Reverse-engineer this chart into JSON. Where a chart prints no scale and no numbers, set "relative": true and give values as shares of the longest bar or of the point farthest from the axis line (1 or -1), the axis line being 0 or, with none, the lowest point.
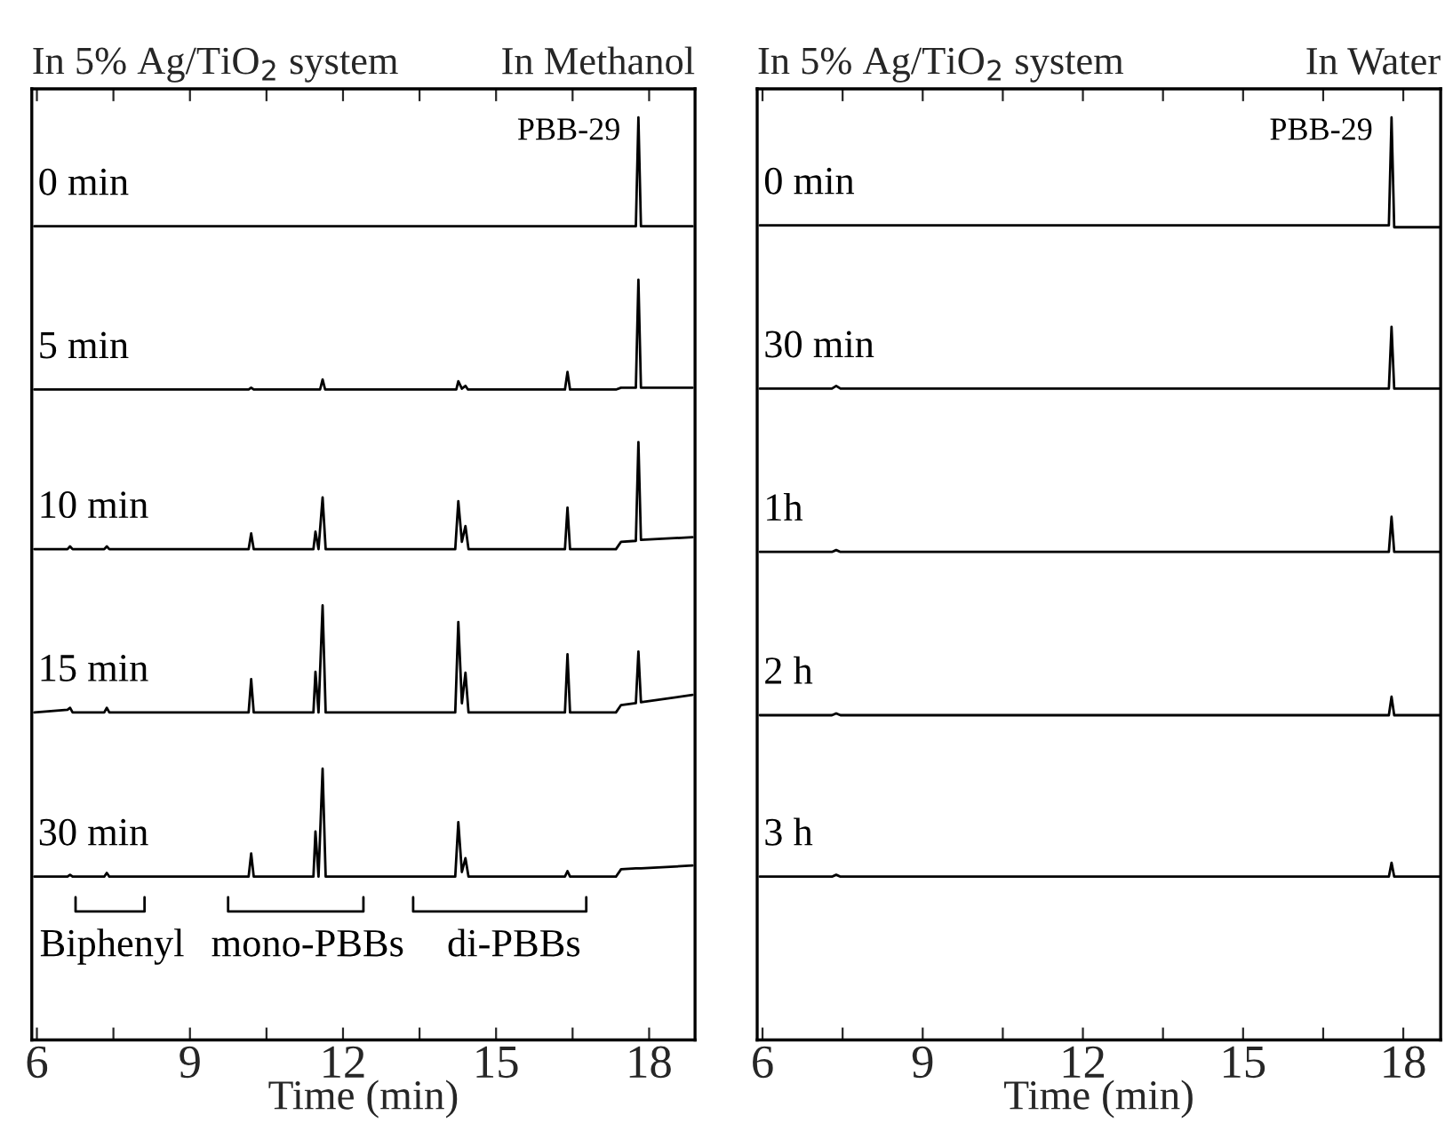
{
  "chart_data": [
    {
      "type": "line",
      "title": "In 5% Ag/TiO$_{2}$ system",
      "subtitle": "In Methanol",
      "xlabel": "Time (min)",
      "relative": true,
      "tick_labels": "x",
      "xlim": [
        5.9,
        18.9
      ],
      "xticks": [
        6,
        {
          "value": 7.5,
          "label": null
        },
        9,
        {
          "value": 10.5,
          "label": null
        },
        12,
        {
          "value": 13.5,
          "label": null
        },
        15,
        {
          "value": 16.5,
          "label": null
        },
        18
      ],
      "series": [
        {
          "name": "0 min",
          "color": "#000000",
          "x": [
            5.95,
            17.74,
            17.79,
            17.84,
            18.85
          ],
          "values": [
            0.882,
            0.882,
            1.0,
            0.882,
            0.882
          ]
        },
        {
          "name": "5 min",
          "color": "#000000",
          "x": [
            5.95,
            10.15,
            10.2,
            10.25,
            11.55,
            11.6,
            11.65,
            14.22,
            14.26,
            14.33,
            14.4,
            14.45,
            16.35,
            16.4,
            16.45,
            17.35,
            17.45,
            17.74,
            17.79,
            17.84,
            18.85
          ],
          "values": [
            0.705,
            0.705,
            0.707,
            0.705,
            0.705,
            0.716,
            0.705,
            0.705,
            0.714,
            0.706,
            0.709,
            0.705,
            0.705,
            0.724,
            0.705,
            0.705,
            0.707,
            0.707,
            0.824,
            0.707,
            0.707
          ]
        },
        {
          "name": "10 min",
          "color": "#000000",
          "x": [
            5.95,
            6.6,
            6.65,
            6.7,
            7.32,
            7.37,
            7.42,
            10.15,
            10.2,
            10.25,
            11.42,
            11.46,
            11.52,
            11.6,
            11.66,
            14.2,
            14.26,
            14.33,
            14.4,
            14.46,
            16.35,
            16.4,
            16.45,
            17.35,
            17.45,
            17.74,
            17.79,
            17.84,
            18.85
          ],
          "values": [
            0.532,
            0.532,
            0.535,
            0.532,
            0.532,
            0.535,
            0.532,
            0.532,
            0.549,
            0.532,
            0.532,
            0.551,
            0.532,
            0.588,
            0.532,
            0.532,
            0.584,
            0.54,
            0.557,
            0.532,
            0.532,
            0.577,
            0.532,
            0.532,
            0.54,
            0.541,
            0.648,
            0.542,
            0.545
          ]
        },
        {
          "name": "15 min",
          "color": "#000000",
          "x": [
            5.95,
            6.6,
            6.65,
            6.7,
            7.32,
            7.37,
            7.42,
            10.15,
            10.2,
            10.25,
            11.42,
            11.46,
            11.52,
            11.6,
            11.66,
            14.2,
            14.26,
            14.33,
            14.4,
            14.46,
            16.35,
            16.4,
            16.45,
            17.35,
            17.45,
            17.74,
            17.79,
            17.84,
            18.85
          ],
          "values": [
            0.355,
            0.358,
            0.36,
            0.355,
            0.355,
            0.36,
            0.355,
            0.355,
            0.391,
            0.355,
            0.355,
            0.399,
            0.355,
            0.471,
            0.355,
            0.355,
            0.453,
            0.365,
            0.398,
            0.355,
            0.355,
            0.418,
            0.355,
            0.355,
            0.363,
            0.365,
            0.421,
            0.366,
            0.374
          ]
        },
        {
          "name": "30 min",
          "color": "#000000",
          "x": [
            5.95,
            6.6,
            6.65,
            6.7,
            7.32,
            7.37,
            7.42,
            10.15,
            10.2,
            10.25,
            11.42,
            11.46,
            11.52,
            11.6,
            11.66,
            14.2,
            14.26,
            14.33,
            14.4,
            14.46,
            16.35,
            16.4,
            16.45,
            17.35,
            17.45,
            17.74,
            17.79,
            17.84,
            18.85
          ],
          "values": [
            0.177,
            0.177,
            0.179,
            0.177,
            0.177,
            0.181,
            0.177,
            0.177,
            0.202,
            0.177,
            0.177,
            0.226,
            0.177,
            0.294,
            0.177,
            0.177,
            0.236,
            0.182,
            0.197,
            0.177,
            0.177,
            0.183,
            0.177,
            0.177,
            0.185,
            0.186,
            0.186,
            0.186,
            0.189
          ]
        }
      ],
      "annotations": [
        {
          "text": "PBB-29",
          "x": 17.79,
          "y": 1.0
        },
        "Biphenyl",
        "mono-PBBs",
        "di-PBBs"
      ]
    },
    {
      "type": "line",
      "title": "In 5% Ag/TiO$_{2}$ system",
      "subtitle": "In Water",
      "xlabel": "Time (min)",
      "relative": true,
      "tick_labels": "x",
      "xlim": [
        5.9,
        18.7
      ],
      "xticks": [
        6,
        {
          "value": 7.5,
          "label": null
        },
        9,
        {
          "value": 10.5,
          "label": null
        },
        12,
        {
          "value": 13.5,
          "label": null
        },
        15,
        {
          "value": 16.5,
          "label": null
        },
        18
      ],
      "series": [
        {
          "name": "0 min",
          "color": "#000000",
          "x": [
            5.95,
            7.3,
            7.38,
            7.46,
            17.73,
            17.78,
            17.83,
            18.7
          ],
          "values": [
            0.883,
            0.883,
            0.883,
            0.883,
            0.883,
            1.0,
            0.881,
            0.881
          ]
        },
        {
          "name": "30 min",
          "color": "#000000",
          "x": [
            5.95,
            7.3,
            7.38,
            7.46,
            17.73,
            17.78,
            17.83,
            18.7
          ],
          "values": [
            0.706,
            0.706,
            0.709,
            0.706,
            0.706,
            0.773,
            0.706,
            0.706
          ]
        },
        {
          "name": "1h",
          "color": "#000000",
          "x": [
            5.95,
            7.3,
            7.38,
            7.46,
            17.73,
            17.78,
            17.83,
            18.7
          ],
          "values": [
            0.529,
            0.529,
            0.531,
            0.529,
            0.529,
            0.567,
            0.529,
            0.529
          ]
        },
        {
          "name": "2 h",
          "color": "#000000",
          "x": [
            5.95,
            7.3,
            7.38,
            7.46,
            17.73,
            17.78,
            17.83,
            18.7
          ],
          "values": [
            0.352,
            0.352,
            0.354,
            0.352,
            0.352,
            0.372,
            0.352,
            0.352
          ]
        },
        {
          "name": "3 h",
          "color": "#000000",
          "x": [
            5.95,
            7.3,
            7.38,
            7.46,
            17.73,
            17.78,
            17.83,
            18.7
          ],
          "values": [
            0.177,
            0.177,
            0.179,
            0.177,
            0.177,
            0.192,
            0.177,
            0.177
          ]
        }
      ],
      "annotations": [
        {
          "text": "PBB-29",
          "x": 17.78,
          "y": 1.0
        }
      ]
    }
  ]
}
